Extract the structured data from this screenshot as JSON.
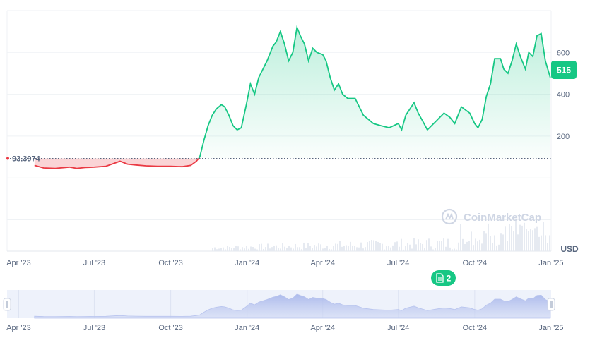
{
  "chart_data": {
    "type": "area",
    "title": "",
    "xlabel": "",
    "ylabel": "USD",
    "x_ticks": [
      "Apr '23",
      "Jul '23",
      "Oct '23",
      "Jan '24",
      "Apr '24",
      "Jul '24",
      "Oct '24",
      "Jan '25"
    ],
    "y_ticks": [
      200,
      400,
      600
    ],
    "ylim": [
      -350,
      800
    ],
    "baseline": {
      "value": 93.3974,
      "label": "93.3974"
    },
    "last_price": {
      "value": 515,
      "label": "515"
    },
    "watermark": "CoinMarketCap",
    "event_badge": {
      "label": "2",
      "date": "2024-09-08"
    },
    "grid": true,
    "colors": {
      "up": "#16c784",
      "down": "#ea3943",
      "badge": "#16c784"
    },
    "series": [
      {
        "x": [
          "2023-04-20",
          "2023-05-01",
          "2023-05-15",
          "2023-06-01",
          "2023-06-10",
          "2023-06-20",
          "2023-07-01",
          "2023-07-15",
          "2023-08-01",
          "2023-08-10",
          "2023-08-20",
          "2023-09-01",
          "2023-09-15",
          "2023-10-01",
          "2023-10-15",
          "2023-10-25",
          "2023-11-01",
          "2023-11-05",
          "2023-11-10",
          "2023-11-15",
          "2023-11-20",
          "2023-11-25",
          "2023-12-01",
          "2023-12-05",
          "2023-12-10",
          "2023-12-15",
          "2023-12-20",
          "2023-12-25",
          "2023-12-31",
          "2024-01-05",
          "2024-01-10",
          "2024-01-15",
          "2024-01-20",
          "2024-01-25",
          "2024-02-01",
          "2024-02-05",
          "2024-02-10",
          "2024-02-15",
          "2024-02-20",
          "2024-02-25",
          "2024-03-01",
          "2024-03-05",
          "2024-03-10",
          "2024-03-15",
          "2024-03-20",
          "2024-03-25",
          "2024-04-01",
          "2024-04-05",
          "2024-04-10",
          "2024-04-15",
          "2024-04-20",
          "2024-04-25",
          "2024-05-01",
          "2024-05-10",
          "2024-05-20",
          "2024-06-01",
          "2024-06-10",
          "2024-06-20",
          "2024-07-01",
          "2024-07-05",
          "2024-07-10",
          "2024-07-20",
          "2024-07-25",
          "2024-08-01",
          "2024-08-05",
          "2024-08-15",
          "2024-08-25",
          "2024-09-01",
          "2024-09-07",
          "2024-09-15",
          "2024-09-25",
          "2024-10-01",
          "2024-10-05",
          "2024-10-10",
          "2024-10-15",
          "2024-10-20",
          "2024-10-25",
          "2024-11-01",
          "2024-11-05",
          "2024-11-10",
          "2024-11-15",
          "2024-11-20",
          "2024-11-25",
          "2024-12-01",
          "2024-12-05",
          "2024-12-10",
          "2024-12-15",
          "2024-12-20",
          "2024-12-25",
          "2024-12-31"
        ],
        "y": [
          60,
          48,
          46,
          52,
          46,
          50,
          52,
          56,
          80,
          66,
          62,
          58,
          56,
          56,
          54,
          60,
          80,
          100,
          180,
          250,
          300,
          330,
          350,
          340,
          300,
          250,
          230,
          240,
          350,
          450,
          400,
          480,
          520,
          560,
          630,
          650,
          700,
          640,
          560,
          600,
          720,
          680,
          640,
          560,
          620,
          600,
          590,
          560,
          480,
          420,
          450,
          400,
          380,
          380,
          300,
          260,
          250,
          240,
          260,
          230,
          300,
          360,
          310,
          260,
          230,
          270,
          310,
          290,
          260,
          340,
          310,
          260,
          240,
          280,
          390,
          450,
          570,
          570,
          520,
          500,
          560,
          640,
          580,
          520,
          600,
          580,
          680,
          690,
          560,
          480
        ]
      }
    ],
    "navigator": {
      "ticks": [
        "Apr '23",
        "Jul '23",
        "Oct '23",
        "Jan '24",
        "Apr '24",
        "Jul '24",
        "Oct '24",
        "Jan '25"
      ]
    }
  }
}
